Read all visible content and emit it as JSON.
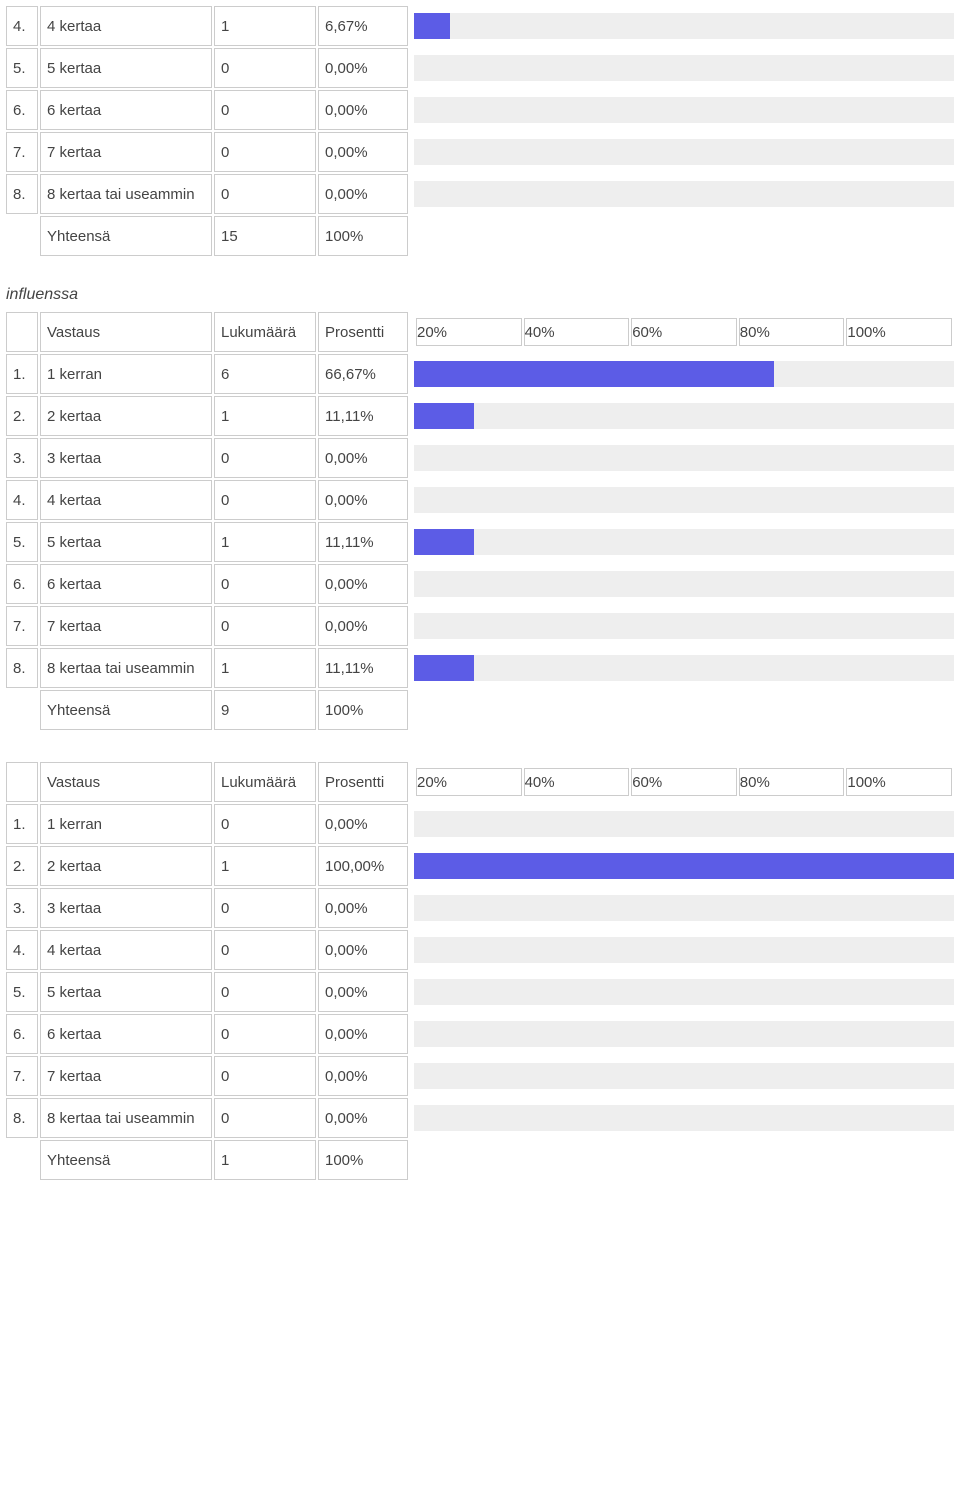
{
  "colors": {
    "bar_fill": "#5c5ce6",
    "bar_track": "#eeeeee",
    "border": "#cccccc",
    "text": "#444444",
    "background": "#ffffff"
  },
  "headers": {
    "vastaus": "Vastaus",
    "lukumaara": "Lukumäärä",
    "prosentti": "Prosentti",
    "yhteensa": "Yhteensä",
    "scale": [
      "20%",
      "40%",
      "60%",
      "80%",
      "100%"
    ]
  },
  "sections": [
    {
      "title": "",
      "show_header": false,
      "rows": [
        {
          "num": "4.",
          "label": "4 kertaa",
          "count": "1",
          "pct": "6,67%",
          "fill": 6.67
        },
        {
          "num": "5.",
          "label": "5 kertaa",
          "count": "0",
          "pct": "0,00%",
          "fill": 0
        },
        {
          "num": "6.",
          "label": "6 kertaa",
          "count": "0",
          "pct": "0,00%",
          "fill": 0
        },
        {
          "num": "7.",
          "label": "7 kertaa",
          "count": "0",
          "pct": "0,00%",
          "fill": 0
        },
        {
          "num": "8.",
          "label": "8 kertaa tai useammin",
          "count": "0",
          "pct": "0,00%",
          "fill": 0
        }
      ],
      "total_count": "15",
      "total_pct": "100%"
    },
    {
      "title": "influenssa",
      "show_header": true,
      "rows": [
        {
          "num": "1.",
          "label": "1 kerran",
          "count": "6",
          "pct": "66,67%",
          "fill": 66.67
        },
        {
          "num": "2.",
          "label": "2 kertaa",
          "count": "1",
          "pct": "11,11%",
          "fill": 11.11
        },
        {
          "num": "3.",
          "label": "3 kertaa",
          "count": "0",
          "pct": "0,00%",
          "fill": 0
        },
        {
          "num": "4.",
          "label": "4 kertaa",
          "count": "0",
          "pct": "0,00%",
          "fill": 0
        },
        {
          "num": "5.",
          "label": "5 kertaa",
          "count": "1",
          "pct": "11,11%",
          "fill": 11.11
        },
        {
          "num": "6.",
          "label": "6 kertaa",
          "count": "0",
          "pct": "0,00%",
          "fill": 0
        },
        {
          "num": "7.",
          "label": "7 kertaa",
          "count": "0",
          "pct": "0,00%",
          "fill": 0
        },
        {
          "num": "8.",
          "label": "8 kertaa tai useammin",
          "count": "1",
          "pct": "11,11%",
          "fill": 11.11
        }
      ],
      "total_count": "9",
      "total_pct": "100%"
    },
    {
      "title": "",
      "show_header": true,
      "rows": [
        {
          "num": "1.",
          "label": "1 kerran",
          "count": "0",
          "pct": "0,00%",
          "fill": 0
        },
        {
          "num": "2.",
          "label": "2 kertaa",
          "count": "1",
          "pct": "100,00%",
          "fill": 100
        },
        {
          "num": "3.",
          "label": "3 kertaa",
          "count": "0",
          "pct": "0,00%",
          "fill": 0
        },
        {
          "num": "4.",
          "label": "4 kertaa",
          "count": "0",
          "pct": "0,00%",
          "fill": 0
        },
        {
          "num": "5.",
          "label": "5 kertaa",
          "count": "0",
          "pct": "0,00%",
          "fill": 0
        },
        {
          "num": "6.",
          "label": "6 kertaa",
          "count": "0",
          "pct": "0,00%",
          "fill": 0
        },
        {
          "num": "7.",
          "label": "7 kertaa",
          "count": "0",
          "pct": "0,00%",
          "fill": 0
        },
        {
          "num": "8.",
          "label": "8 kertaa tai useammin",
          "count": "0",
          "pct": "0,00%",
          "fill": 0
        }
      ],
      "total_count": "1",
      "total_pct": "100%"
    }
  ]
}
